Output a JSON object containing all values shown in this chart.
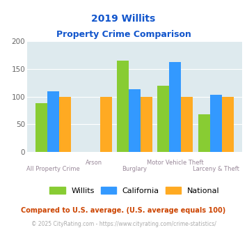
{
  "title_line1": "2019 Willits",
  "title_line2": "Property Crime Comparison",
  "categories": [
    "All Property Crime",
    "Arson",
    "Burglary",
    "Motor Vehicle Theft",
    "Larceny & Theft"
  ],
  "series": {
    "Willits": [
      88,
      null,
      165,
      120,
      68
    ],
    "California": [
      110,
      null,
      113,
      163,
      103
    ],
    "National": [
      100,
      100,
      100,
      100,
      100
    ]
  },
  "colors": {
    "Willits": "#88cc33",
    "California": "#3399ff",
    "National": "#ffaa22"
  },
  "ylim": [
    0,
    200
  ],
  "yticks": [
    0,
    50,
    100,
    150,
    200
  ],
  "background_color": "#deeaee",
  "title_color": "#1155cc",
  "xlabel_color": "#998899",
  "footnote1": "Compared to U.S. average. (U.S. average equals 100)",
  "footnote2": "© 2025 CityRating.com - https://www.cityrating.com/crime-statistics/",
  "footnote1_color": "#cc4400",
  "footnote2_color": "#aaaaaa"
}
